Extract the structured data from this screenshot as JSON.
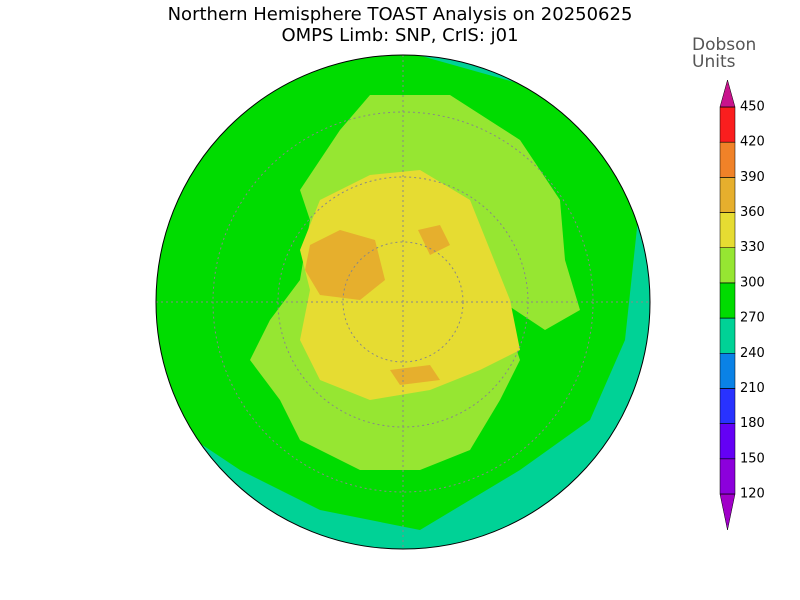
{
  "title": [
    "Northern Hemisphere TOAST Analysis on 20250625",
    "OMPS Limb: SNP, CrIS: j01"
  ],
  "colorbar": {
    "label": [
      "Dobson",
      "Units"
    ],
    "ticks": [
      120,
      150,
      180,
      210,
      240,
      270,
      300,
      330,
      360,
      390,
      420,
      450
    ],
    "colors": [
      "#a000c8",
      "#8c00dc",
      "#6400f5",
      "#2832ff",
      "#0a82e6",
      "#00d296",
      "#00dc00",
      "#96e632",
      "#e6dc32",
      "#e6af2d",
      "#f08228",
      "#fa1e1e",
      "#c8148c"
    ]
  }
}
